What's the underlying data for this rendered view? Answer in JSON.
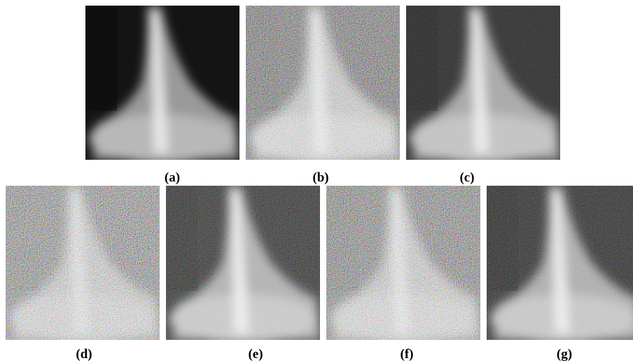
{
  "figure": {
    "panels": [
      {
        "label": "(a)"
      },
      {
        "label": "(b)"
      },
      {
        "label": "(c)"
      },
      {
        "label": "(d)"
      },
      {
        "label": "(e)"
      },
      {
        "label": "(f)"
      },
      {
        "label": "(g)"
      }
    ]
  }
}
